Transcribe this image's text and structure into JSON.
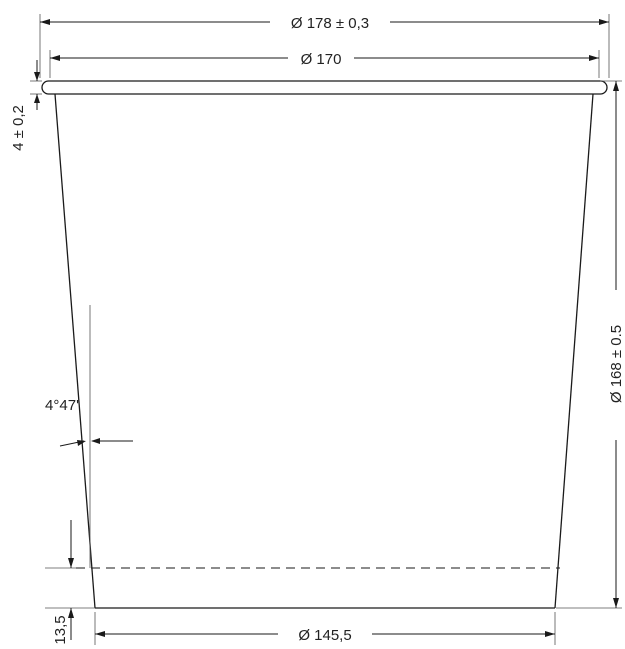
{
  "dimensions": {
    "top_outer_diameter": "Ø 178 ± 0,3",
    "top_inner_diameter": "Ø 170",
    "rim_height": "4 ± 0,2",
    "total_height": "Ø 168 ± 0.5",
    "wall_angle": "4°47'",
    "bottom_offset": "13,5",
    "bottom_diameter": "Ø 145,5"
  }
}
